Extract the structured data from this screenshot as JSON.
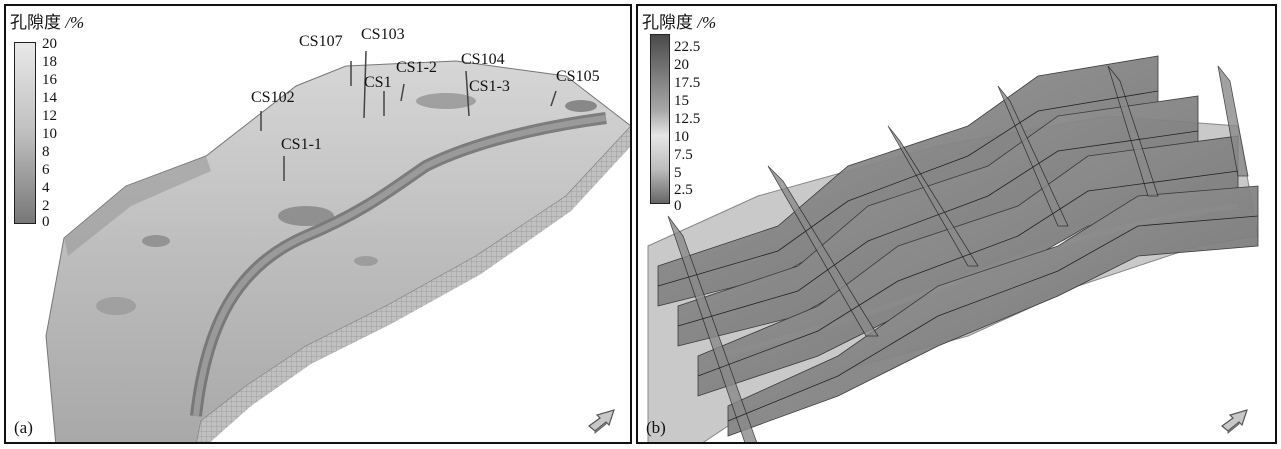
{
  "panel_a": {
    "legend": {
      "title": "孔隙度",
      "unit": "/%",
      "ticks": [
        "20",
        "18",
        "16",
        "14",
        "12",
        "10",
        "8",
        "6",
        "4",
        "2",
        "0"
      ]
    },
    "wells": [
      "CS107",
      "CS103",
      "CS1-2",
      "CS104",
      "CS1",
      "CS1-3",
      "CS105",
      "CS102",
      "CS1-1"
    ],
    "label": "(a)"
  },
  "panel_b": {
    "legend": {
      "title": "孔隙度",
      "unit": "/%",
      "ticks": [
        "22.5",
        "20",
        "17.5",
        "15",
        "12.5",
        "10",
        "7.5",
        "5",
        "2.5",
        "0"
      ]
    },
    "label": "(b)"
  },
  "icons": {
    "navigation": "orientation-arrow-icon"
  }
}
